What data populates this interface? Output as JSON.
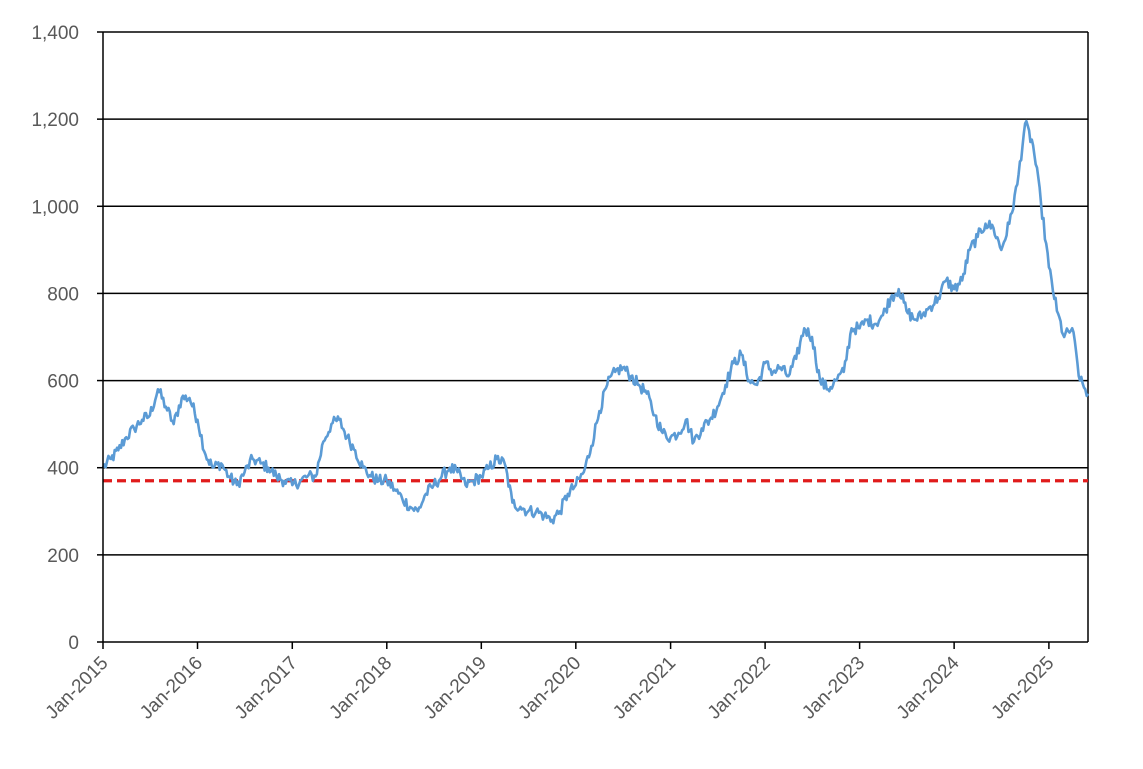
{
  "chart_data": {
    "type": "line",
    "title": "",
    "xlabel": "",
    "ylabel": "",
    "ylim": [
      0,
      1400
    ],
    "xlim": [
      "2015-01-01",
      "2025-06-01"
    ],
    "grid": true,
    "y_ticks": [
      {
        "value": 0,
        "label": "0"
      },
      {
        "value": 200,
        "label": "200"
      },
      {
        "value": 400,
        "label": "400"
      },
      {
        "value": 600,
        "label": "600"
      },
      {
        "value": 800,
        "label": "800"
      },
      {
        "value": 1000,
        "label": "1,000"
      },
      {
        "value": 1200,
        "label": "1,200"
      },
      {
        "value": 1400,
        "label": "1,400"
      }
    ],
    "x_ticks": [
      {
        "value": "2015-01-01",
        "label": "Jan-2015"
      },
      {
        "value": "2016-01-01",
        "label": "Jan-2016"
      },
      {
        "value": "2017-01-01",
        "label": "Jan-2017"
      },
      {
        "value": "2018-01-01",
        "label": "Jan-2018"
      },
      {
        "value": "2019-01-01",
        "label": "Jan-2019"
      },
      {
        "value": "2020-01-01",
        "label": "Jan-2020"
      },
      {
        "value": "2021-01-01",
        "label": "Jan-2021"
      },
      {
        "value": "2022-01-01",
        "label": "Jan-2022"
      },
      {
        "value": "2023-01-01",
        "label": "Jan-2023"
      },
      {
        "value": "2024-01-01",
        "label": "Jan-2024"
      },
      {
        "value": "2025-01-01",
        "label": "Jan-2025"
      }
    ],
    "series": [
      {
        "color": "#5b9bd5",
        "x": [
          "2015-01-01",
          "2015-02-01",
          "2015-03-01",
          "2015-04-01",
          "2015-05-01",
          "2015-06-01",
          "2015-07-01",
          "2015-08-01",
          "2015-09-01",
          "2015-10-01",
          "2015-11-01",
          "2015-12-01",
          "2016-01-01",
          "2016-02-01",
          "2016-03-01",
          "2016-04-01",
          "2016-05-01",
          "2016-06-01",
          "2016-07-01",
          "2016-08-01",
          "2016-09-01",
          "2016-10-01",
          "2016-11-01",
          "2016-12-01",
          "2017-01-01",
          "2017-02-01",
          "2017-03-01",
          "2017-04-01",
          "2017-05-01",
          "2017-06-01",
          "2017-07-01",
          "2017-08-01",
          "2017-09-01",
          "2017-10-01",
          "2017-11-01",
          "2017-12-01",
          "2018-01-01",
          "2018-02-01",
          "2018-03-01",
          "2018-04-01",
          "2018-05-01",
          "2018-06-01",
          "2018-07-01",
          "2018-08-01",
          "2018-09-01",
          "2018-10-01",
          "2018-11-01",
          "2018-12-01",
          "2019-01-01",
          "2019-02-01",
          "2019-03-01",
          "2019-04-01",
          "2019-05-01",
          "2019-06-01",
          "2019-07-01",
          "2019-08-01",
          "2019-09-01",
          "2019-10-01",
          "2019-11-01",
          "2019-12-01",
          "2020-01-01",
          "2020-02-01",
          "2020-03-01",
          "2020-04-01",
          "2020-05-01",
          "2020-06-01",
          "2020-07-01",
          "2020-08-01",
          "2020-09-01",
          "2020-10-01",
          "2020-11-01",
          "2020-12-01",
          "2021-01-01",
          "2021-02-01",
          "2021-03-01",
          "2021-04-01",
          "2021-05-01",
          "2021-06-01",
          "2021-07-01",
          "2021-08-01",
          "2021-09-01",
          "2021-10-01",
          "2021-11-01",
          "2021-12-01",
          "2022-01-01",
          "2022-02-01",
          "2022-03-01",
          "2022-04-01",
          "2022-05-01",
          "2022-06-01",
          "2022-07-01",
          "2022-08-01",
          "2022-09-01",
          "2022-10-01",
          "2022-11-01",
          "2022-12-01",
          "2023-01-01",
          "2023-02-01",
          "2023-03-01",
          "2023-04-01",
          "2023-05-01",
          "2023-06-01",
          "2023-07-01",
          "2023-08-01",
          "2023-09-01",
          "2023-10-01",
          "2023-11-01",
          "2023-12-01",
          "2024-01-01",
          "2024-02-01",
          "2024-03-01",
          "2024-04-01",
          "2024-05-01",
          "2024-06-01",
          "2024-07-01",
          "2024-08-01",
          "2024-09-01",
          "2024-10-01",
          "2024-11-01",
          "2024-12-01",
          "2025-01-01",
          "2025-02-01",
          "2025-03-01",
          "2025-04-01",
          "2025-05-01",
          "2025-06-01"
        ],
        "values": [
          400,
          420,
          440,
          470,
          490,
          510,
          520,
          580,
          540,
          500,
          560,
          560,
          510,
          430,
          400,
          410,
          380,
          360,
          390,
          420,
          410,
          400,
          380,
          370,
          360,
          370,
          380,
          380,
          460,
          500,
          510,
          470,
          440,
          400,
          380,
          370,
          370,
          350,
          330,
          310,
          300,
          340,
          360,
          380,
          400,
          390,
          360,
          370,
          380,
          400,
          420,
          410,
          320,
          310,
          300,
          300,
          290,
          280,
          300,
          340,
          360,
          390,
          450,
          530,
          590,
          620,
          630,
          610,
          590,
          570,
          520,
          480,
          470,
          480,
          510,
          460,
          490,
          510,
          540,
          590,
          640,
          660,
          600,
          590,
          640,
          620,
          630,
          610,
          650,
          720,
          700,
          600,
          580,
          600,
          620,
          720,
          720,
          740,
          730,
          750,
          790,
          810,
          760,
          740,
          750,
          770,
          790,
          830,
          810,
          830,
          900,
          930,
          960,
          950,
          900,
          960,
          1050,
          1190,
          1140,
          1010,
          860,
          760,
          700,
          720,
          600,
          570
        ],
        "samples_per_month": 6,
        "noise": 14
      }
    ],
    "reference_lines": [
      {
        "value": 370,
        "color": "#e01b1b",
        "style": "dashed"
      }
    ]
  }
}
